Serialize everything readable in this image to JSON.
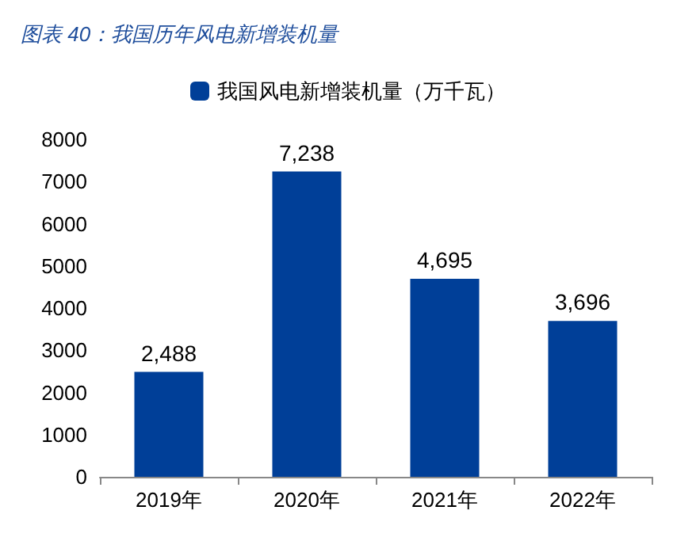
{
  "chart_data": {
    "type": "bar",
    "title": "图表 40：我国历年风电新增装机量",
    "categories": [
      "2019年",
      "2020年",
      "2021年",
      "2022年"
    ],
    "series": [
      {
        "name": "我国风电新增装机量（万千瓦）",
        "color": "#003f98",
        "values": [
          2488,
          7238,
          4695,
          3696
        ]
      }
    ],
    "value_labels": [
      "2,488",
      "7,238",
      "4,695",
      "3,696"
    ],
    "ylim": [
      0,
      8000
    ],
    "yticks": [
      0,
      1000,
      2000,
      3000,
      4000,
      5000,
      6000,
      7000,
      8000
    ],
    "grid": false,
    "legend": "top"
  }
}
